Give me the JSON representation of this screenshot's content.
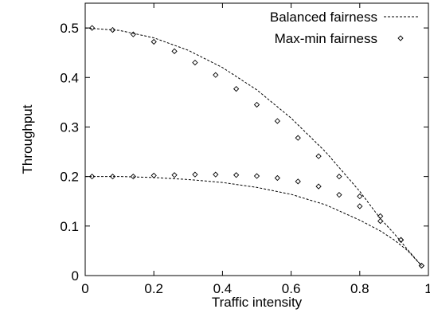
{
  "chart_data": {
    "type": "line",
    "xlabel": "Traffic intensity",
    "ylabel": "Throughput",
    "xlim": [
      0,
      1
    ],
    "ylim": [
      0,
      0.55
    ],
    "xticks": [
      "0",
      "0.2",
      "0.4",
      "0.6",
      "0.8",
      "1"
    ],
    "yticks": [
      "0",
      "0.1",
      "0.2",
      "0.3",
      "0.4",
      "0.5"
    ],
    "grid": false,
    "legend_position": "top-right",
    "series": [
      {
        "name": "Balanced fairness",
        "style": "dashed-line",
        "curves": [
          {
            "x": [
              0,
              0.1,
              0.2,
              0.3,
              0.4,
              0.5,
              0.6,
              0.7,
              0.8,
              0.86,
              0.9,
              0.94,
              0.98
            ],
            "y": [
              0.5,
              0.495,
              0.48,
              0.455,
              0.42,
              0.375,
              0.318,
              0.25,
              0.17,
              0.115,
              0.085,
              0.052,
              0.02
            ]
          },
          {
            "x": [
              0,
              0.1,
              0.2,
              0.3,
              0.4,
              0.5,
              0.6,
              0.7,
              0.8,
              0.86,
              0.9,
              0.94,
              0.98
            ],
            "y": [
              0.2,
              0.2,
              0.198,
              0.194,
              0.188,
              0.178,
              0.164,
              0.143,
              0.112,
              0.09,
              0.072,
              0.05,
              0.02
            ]
          }
        ]
      },
      {
        "name": "Max-min fairness",
        "style": "diamond-markers",
        "curves": [
          {
            "x": [
              0.02,
              0.08,
              0.14,
              0.2,
              0.26,
              0.32,
              0.38,
              0.44,
              0.5,
              0.56,
              0.62,
              0.68,
              0.74,
              0.8,
              0.86,
              0.92,
              0.98
            ],
            "y": [
              0.5,
              0.496,
              0.487,
              0.472,
              0.453,
              0.43,
              0.405,
              0.377,
              0.345,
              0.312,
              0.278,
              0.241,
              0.2,
              0.16,
              0.12,
              0.072,
              0.02
            ]
          },
          {
            "x": [
              0.02,
              0.08,
              0.14,
              0.2,
              0.26,
              0.32,
              0.38,
              0.44,
              0.5,
              0.56,
              0.62,
              0.68,
              0.74,
              0.8,
              0.86,
              0.92,
              0.98
            ],
            "y": [
              0.2,
              0.2,
              0.2,
              0.202,
              0.203,
              0.204,
              0.204,
              0.203,
              0.201,
              0.197,
              0.19,
              0.18,
              0.163,
              0.14,
              0.11,
              0.072,
              0.02
            ]
          }
        ]
      }
    ]
  }
}
